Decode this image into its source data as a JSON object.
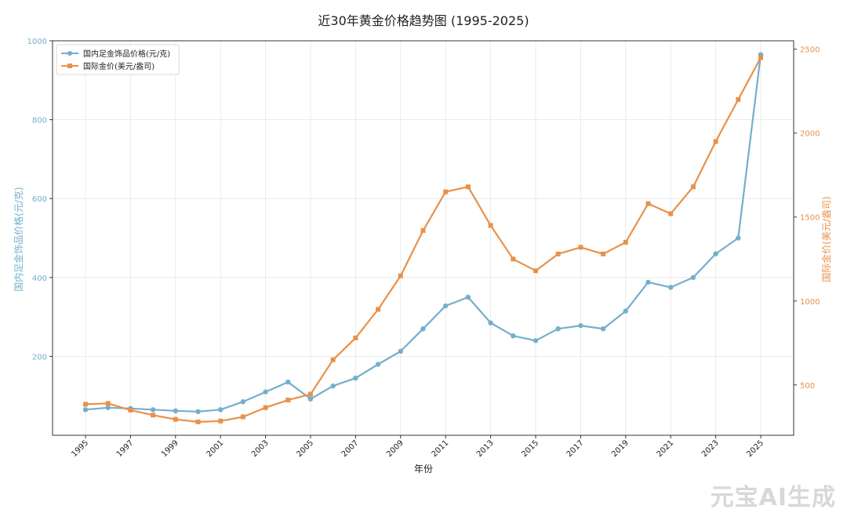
{
  "chart_data": {
    "type": "line",
    "title": "近30年黄金价格趋势图 (1995-2025)",
    "xlabel": "年份",
    "x": [
      1995,
      1996,
      1997,
      1998,
      1999,
      2000,
      2001,
      2002,
      2003,
      2004,
      2005,
      2006,
      2007,
      2008,
      2009,
      2010,
      2011,
      2012,
      2013,
      2014,
      2015,
      2016,
      2017,
      2018,
      2019,
      2020,
      2021,
      2022,
      2023,
      2024,
      2025
    ],
    "xticks": [
      "1995",
      "1997",
      "1999",
      "2001",
      "2003",
      "2005",
      "2007",
      "2009",
      "2011",
      "2013",
      "2015",
      "2017",
      "2019",
      "2021",
      "2023",
      "2025"
    ],
    "y_left": {
      "label": "国内足金饰品价格(元/克)",
      "lim": [
        0,
        1000
      ],
      "ticks": [
        "200",
        "400",
        "600",
        "800",
        "1000"
      ],
      "color": "#74afcb"
    },
    "y_right": {
      "label": "国际金价(美元/盎司)",
      "lim": [
        200,
        2550
      ],
      "ticks": [
        "500",
        "1000",
        "1500",
        "2000",
        "2500"
      ],
      "color": "#e8914a"
    },
    "series": [
      {
        "name": "国内足金饰品价格(元/克)",
        "axis": "left",
        "marker": "circle",
        "color": "#74afcb",
        "values": [
          65,
          70,
          68,
          65,
          62,
          60,
          65,
          85,
          110,
          135,
          92,
          125,
          145,
          180,
          213,
          270,
          328,
          350,
          285,
          252,
          240,
          270,
          278,
          270,
          315,
          388,
          375,
          400,
          460,
          500,
          965
        ]
      },
      {
        "name": "国际金价(美元/盎司)",
        "axis": "right",
        "marker": "square",
        "color": "#e8914a",
        "values": [
          385,
          390,
          350,
          320,
          295,
          280,
          285,
          310,
          365,
          410,
          445,
          650,
          780,
          950,
          1150,
          1420,
          1650,
          1680,
          1450,
          1250,
          1180,
          1280,
          1320,
          1280,
          1350,
          1580,
          1520,
          1680,
          1950,
          2200,
          2450
        ]
      }
    ],
    "legend": "top-left",
    "grid": true
  },
  "watermark": "元宝AI生成"
}
